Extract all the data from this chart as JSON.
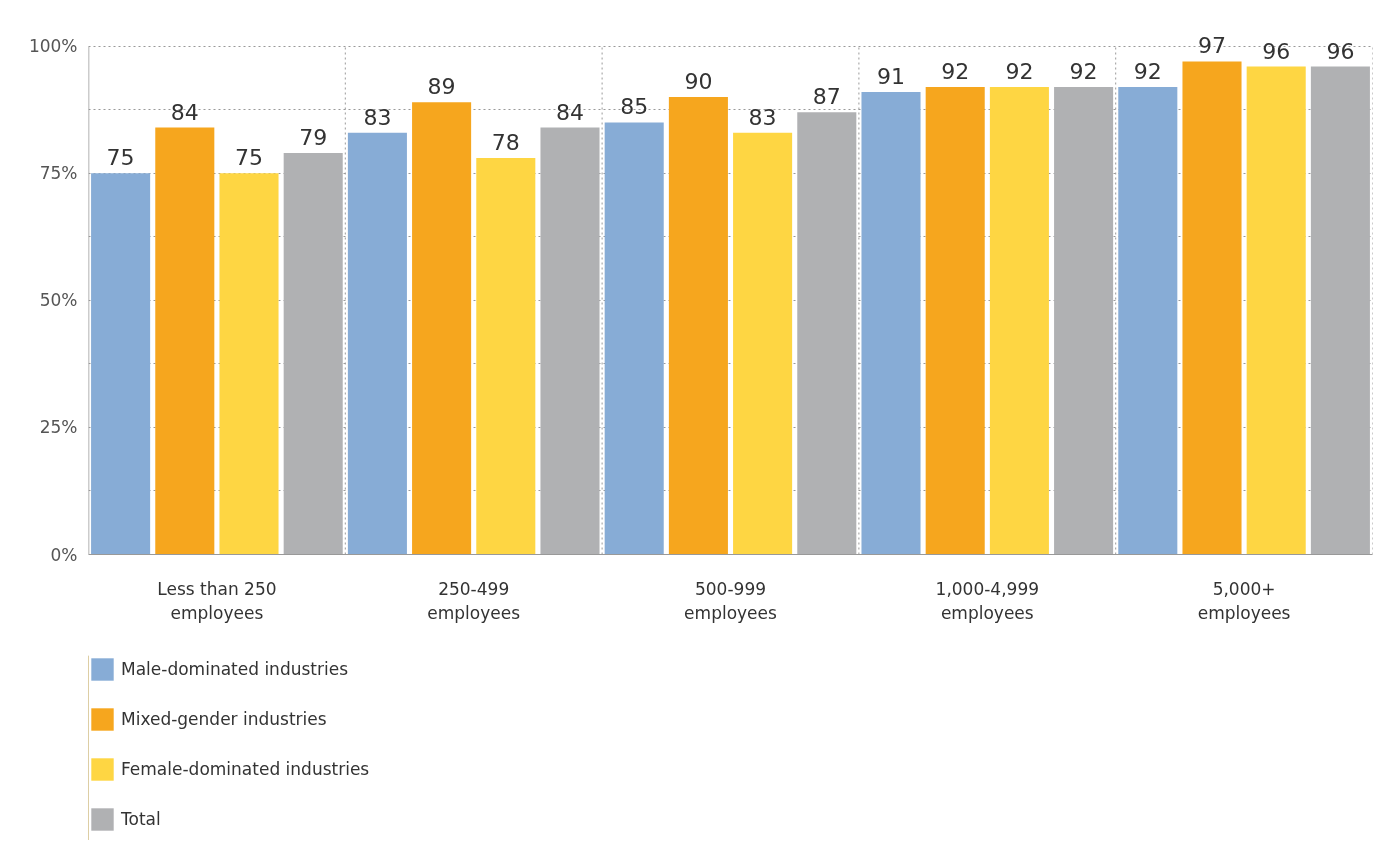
{
  "chart_data": {
    "type": "bar",
    "categories": [
      "Less than 250 employees",
      "250-499 employees",
      "500-999 employees",
      "1,000-4,999 employees",
      "5,000+ employees"
    ],
    "series": [
      {
        "name": "Male-dominated industries",
        "color": "#87acd6",
        "values": [
          75,
          83,
          85,
          91,
          92
        ]
      },
      {
        "name": "Mixed-gender industries",
        "color": "#f6a61e",
        "values": [
          84,
          89,
          90,
          92,
          97
        ]
      },
      {
        "name": "Female-dominated industries",
        "color": "#fed643",
        "values": [
          75,
          78,
          83,
          92,
          96
        ]
      },
      {
        "name": "Total",
        "color": "#b0b1b3",
        "values": [
          79,
          84,
          87,
          92,
          96
        ]
      }
    ],
    "ylim": [
      0,
      100
    ],
    "yticks": [
      {
        "value": 0,
        "label": "0%"
      },
      {
        "value": 12.5,
        "label": null
      },
      {
        "value": 25,
        "label": "25%"
      },
      {
        "value": 37.5,
        "label": null
      },
      {
        "value": 50,
        "label": "50%"
      },
      {
        "value": 62.5,
        "label": null
      },
      {
        "value": 75,
        "label": "75%"
      },
      {
        "value": 87.5,
        "label": null
      },
      {
        "value": 100,
        "label": "100%"
      }
    ],
    "data_labels": true,
    "grid": true,
    "legend": "bottom left"
  }
}
